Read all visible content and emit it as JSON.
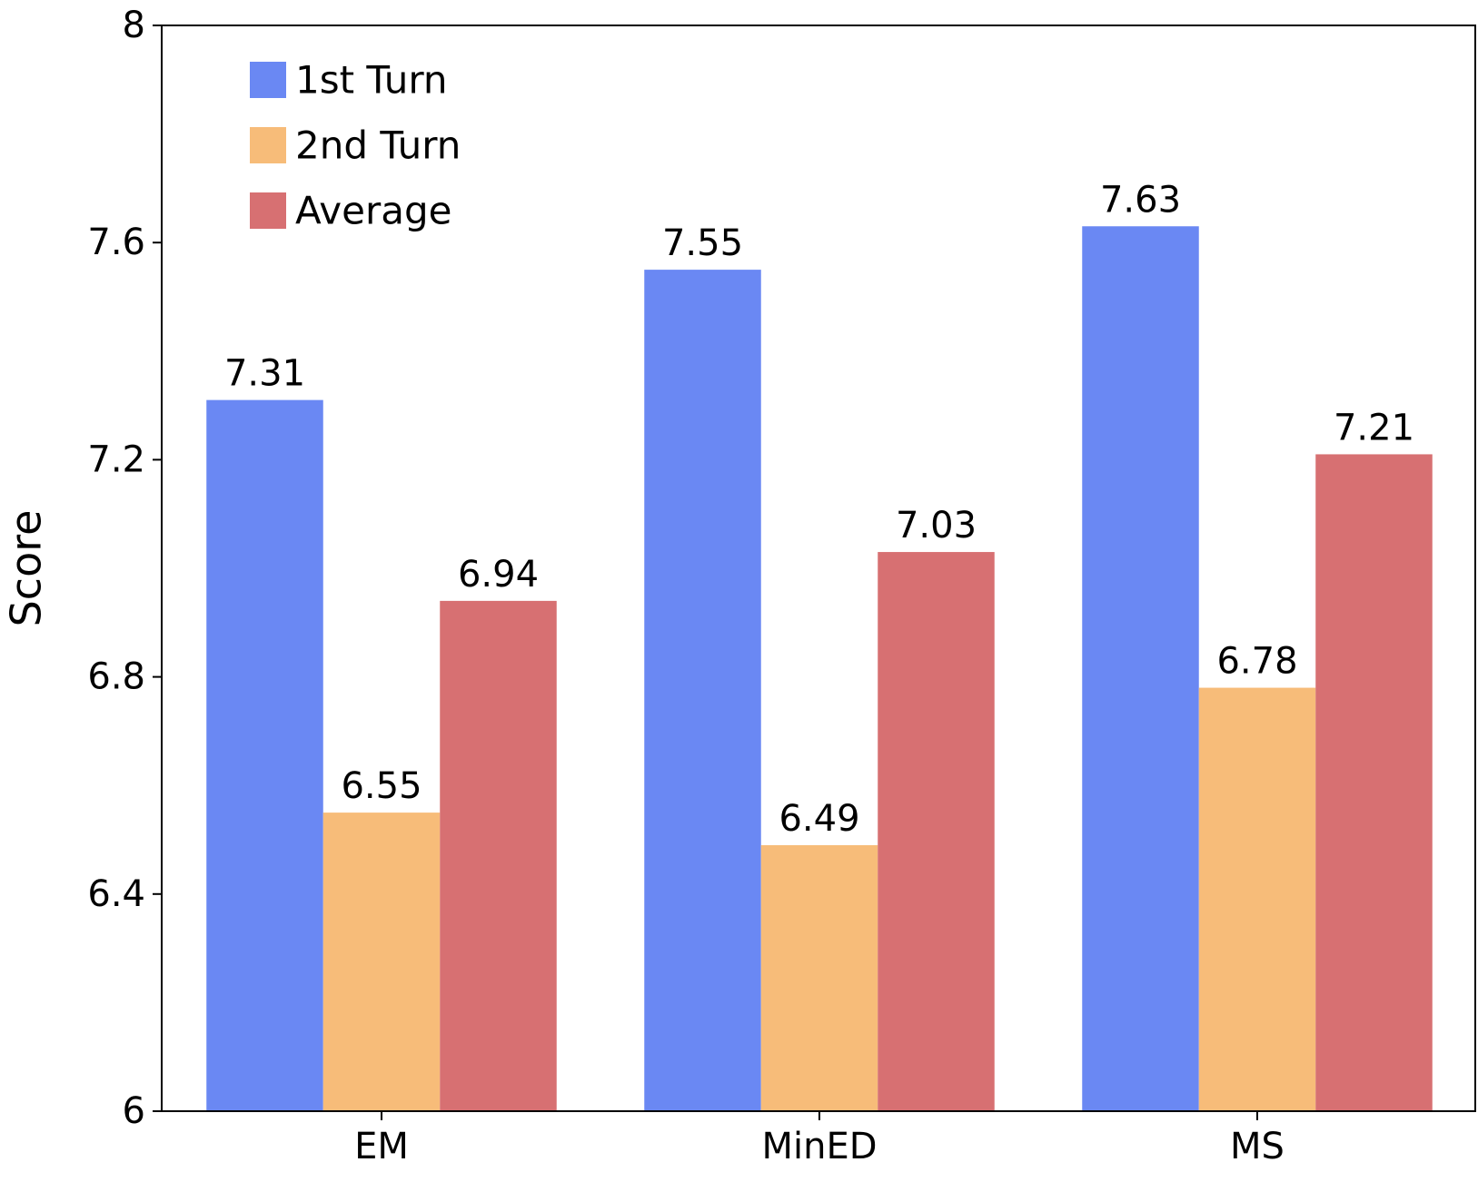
{
  "chart_data": {
    "type": "bar",
    "title": "",
    "xlabel": "",
    "ylabel": "Score",
    "categories": [
      "EM",
      "MinED",
      "MS"
    ],
    "series": [
      {
        "name": "1st Turn",
        "color": "#6a88f3",
        "values": [
          7.31,
          7.55,
          7.63
        ],
        "labels": [
          "7.31",
          "7.55",
          "7.63"
        ]
      },
      {
        "name": "2nd Turn",
        "color": "#f7bc79",
        "values": [
          6.55,
          6.49,
          6.78
        ],
        "labels": [
          "6.55",
          "6.49",
          "6.78"
        ]
      },
      {
        "name": "Average",
        "color": "#d77072",
        "values": [
          6.94,
          7.03,
          7.21
        ],
        "labels": [
          "6.94",
          "7.03",
          "7.21"
        ]
      }
    ],
    "ylim": [
      6,
      8
    ],
    "yticks": [
      6,
      6.4,
      6.8,
      7.2,
      7.6,
      8
    ],
    "ytick_labels": [
      "6",
      "6.4",
      "6.8",
      "7.2",
      "7.6",
      "8"
    ],
    "grid": false,
    "legend_position": "top-left"
  }
}
